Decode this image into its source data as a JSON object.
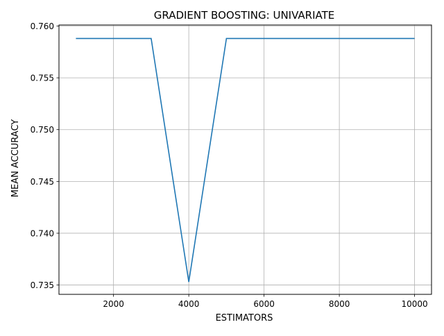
{
  "chart_data": {
    "type": "line",
    "title": "GRADIENT BOOSTING: UNIVARIATE",
    "xlabel": "ESTIMATORS",
    "ylabel": "MEAN ACCURACY",
    "xlim": [
      550,
      10450
    ],
    "ylim": [
      0.7341,
      0.7601
    ],
    "xticks": [
      2000,
      4000,
      6000,
      8000,
      10000
    ],
    "yticks": [
      0.735,
      0.74,
      0.745,
      0.75,
      0.755,
      0.76
    ],
    "ytick_labels": [
      "0.735",
      "0.740",
      "0.745",
      "0.750",
      "0.755",
      "0.760"
    ],
    "grid": true,
    "series": [
      {
        "color": "#1f77b4",
        "x": [
          1000,
          2000,
          3000,
          4000,
          5000,
          6000,
          7000,
          8000,
          9000,
          10000
        ],
        "y": [
          0.7588,
          0.7588,
          0.7588,
          0.7353,
          0.7588,
          0.7588,
          0.7588,
          0.7588,
          0.7588,
          0.7588
        ]
      }
    ]
  }
}
